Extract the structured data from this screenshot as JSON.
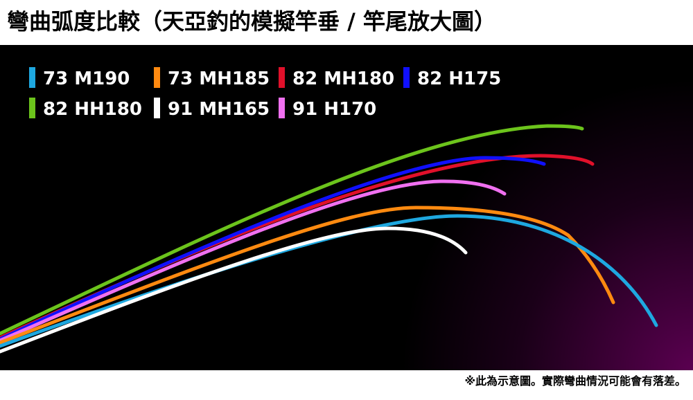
{
  "header": {
    "title": "彎曲弧度比較（天亞釣的模擬竿垂 / 竿尾放大圖）"
  },
  "legend": [
    {
      "name": "73 M190",
      "color": "#1ea8e0"
    },
    {
      "name": "73 MH185",
      "color": "#ff8a10"
    },
    {
      "name": "82 MH180",
      "color": "#e0102a"
    },
    {
      "name": "82 H175",
      "color": "#1010ff"
    },
    {
      "name": "82 HH180",
      "color": "#6cc41c"
    },
    {
      "name": "91 MH165",
      "color": "#ffffff"
    },
    {
      "name": "91 H170",
      "color": "#f070f0"
    }
  ],
  "footer": {
    "note": "※此為示意圖。實際彎曲情況可能會有落差。"
  }
}
